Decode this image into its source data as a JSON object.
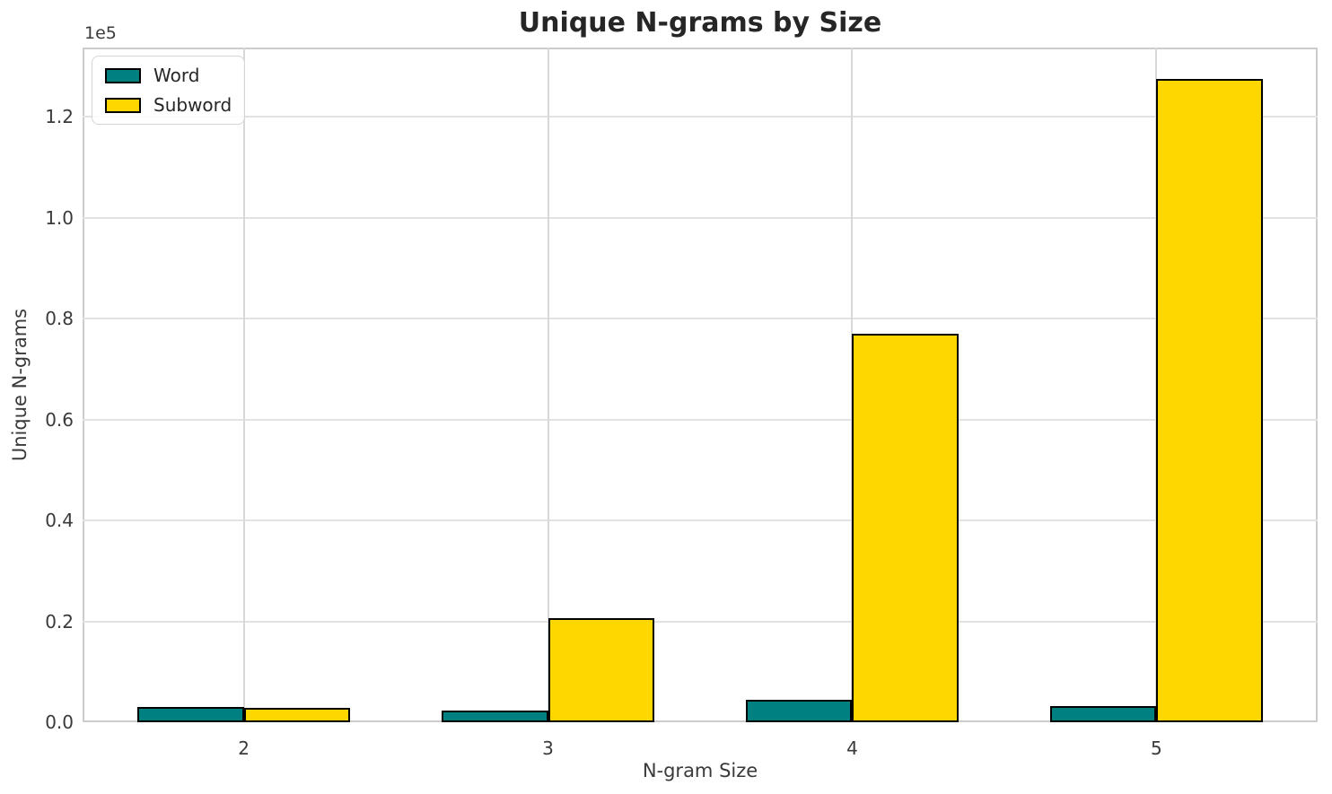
{
  "figure": {
    "title": "Unique N-grams by Size",
    "offset_text": "1e5"
  },
  "chart_data": {
    "type": "bar",
    "title": "Unique N-grams by Size",
    "xlabel": "N-gram Size",
    "ylabel": "Unique N-grams",
    "categories": [
      "2",
      "3",
      "4",
      "5"
    ],
    "x": [
      2,
      3,
      4,
      5
    ],
    "series": [
      {
        "name": "Word",
        "color": "#008080",
        "values": [
          3000,
          2300,
          4400,
          3200
        ]
      },
      {
        "name": "Subword",
        "color": "#FFD700",
        "values": [
          2900,
          20700,
          77000,
          127500
        ]
      }
    ],
    "bar_edge_color": "#000000",
    "bar_width_data_units": 0.35,
    "xlim": [
      1.47,
      5.53
    ],
    "ylim": [
      0,
      133700
    ],
    "yticks": [
      0,
      20000,
      40000,
      60000,
      80000,
      100000,
      120000
    ],
    "ytick_labels": [
      "0.0",
      "0.2",
      "0.4",
      "0.6",
      "0.8",
      "1.0",
      "1.2"
    ],
    "y_offset_factor": "1e5",
    "grid": true,
    "legend_position": "upper left"
  },
  "legend": {
    "items": [
      {
        "label": "Word",
        "color": "#008080"
      },
      {
        "label": "Subword",
        "color": "#FFD700"
      }
    ]
  },
  "colors": {
    "word_fill": "#008080",
    "subword_fill": "#FFD700",
    "bar_edge": "#000000",
    "gridline": "#e2e2e2",
    "spine": "#cccccc",
    "text": "#3a3a3a",
    "title_text": "#262626"
  }
}
